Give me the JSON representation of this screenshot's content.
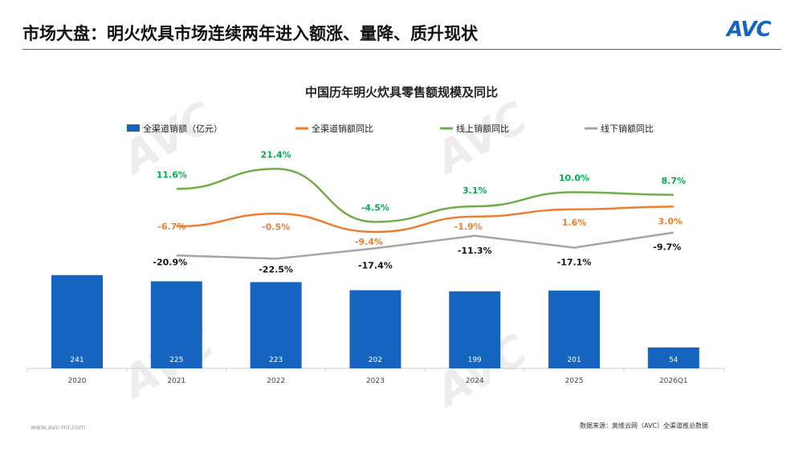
{
  "header": {
    "title": "市场大盘：明火炊具市场连续两年进入额涨、量降、质升现状",
    "logo": "AVC"
  },
  "watermark": "奥维云网 ALL VIEW CLOUD",
  "footer": {
    "site": "www.avc-mr.com",
    "source": "数据来源：奥维云网（AVC）全渠道推总数据"
  },
  "chart_data": {
    "type": "bar+line",
    "title": "中国历年明火炊具零售额规模及同比",
    "categories": [
      "2020",
      "2021",
      "2022",
      "2023",
      "2024",
      "2025",
      "2026Q1"
    ],
    "legend_position": "top",
    "series": [
      {
        "name": "全渠道销额（亿元）",
        "type": "bar",
        "color": "#1565c0",
        "values": [
          241,
          225,
          223,
          202,
          199,
          201,
          54
        ]
      },
      {
        "name": "全渠道销额同比",
        "type": "line",
        "color": "#ed7d31",
        "label_color": "#ed7d31",
        "values": [
          null,
          -6.7,
          -0.5,
          -9.4,
          -1.9,
          1.6,
          3.0
        ]
      },
      {
        "name": "线上销额同比",
        "type": "line",
        "color": "#70ad47",
        "label_color": "#00b050",
        "values": [
          null,
          11.6,
          21.4,
          -4.5,
          3.1,
          10.0,
          8.7
        ]
      },
      {
        "name": "线下销额同比",
        "type": "line",
        "color": "#a5a5a5",
        "label_color": "#111111",
        "values": [
          null,
          -20.9,
          -22.5,
          -17.4,
          -11.3,
          -17.1,
          -9.7
        ]
      }
    ]
  }
}
